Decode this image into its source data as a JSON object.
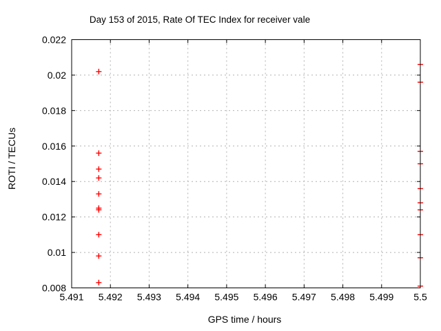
{
  "chart_data": {
    "type": "scatter",
    "title": "Day 153 of 2015, Rate Of TEC Index for receiver vale",
    "xlabel": "GPS time / hours",
    "ylabel": "ROTI / TECUs",
    "xlim": [
      5.491,
      5.5
    ],
    "ylim": [
      0.008,
      0.022
    ],
    "grid": true,
    "legend": "none",
    "marker": "plus",
    "colors": {
      "marker": "#ff0000",
      "grid": "#b0b0b0",
      "axis": "#000000",
      "background": "#ffffff"
    },
    "xticks": [
      {
        "value": 5.491,
        "label": "5.491"
      },
      {
        "value": 5.492,
        "label": "5.492"
      },
      {
        "value": 5.493,
        "label": "5.493"
      },
      {
        "value": 5.494,
        "label": "5.494"
      },
      {
        "value": 5.495,
        "label": "5.495"
      },
      {
        "value": 5.496,
        "label": "5.496"
      },
      {
        "value": 5.497,
        "label": "5.497"
      },
      {
        "value": 5.498,
        "label": "5.498"
      },
      {
        "value": 5.499,
        "label": "5.499"
      },
      {
        "value": 5.5,
        "label": "5.5"
      }
    ],
    "yticks": [
      {
        "value": 0.008,
        "label": "0.008"
      },
      {
        "value": 0.01,
        "label": "0.01"
      },
      {
        "value": 0.012,
        "label": "0.012"
      },
      {
        "value": 0.014,
        "label": "0.014"
      },
      {
        "value": 0.016,
        "label": "0.016"
      },
      {
        "value": 0.018,
        "label": "0.018"
      },
      {
        "value": 0.02,
        "label": "0.02"
      },
      {
        "value": 0.022,
        "label": "0.022"
      }
    ],
    "series": [
      {
        "name": "ROTI",
        "points": [
          [
            5.4917,
            0.0202
          ],
          [
            5.4917,
            0.0156
          ],
          [
            5.4917,
            0.0147
          ],
          [
            5.4917,
            0.0142
          ],
          [
            5.4917,
            0.0133
          ],
          [
            5.4917,
            0.0125
          ],
          [
            5.4917,
            0.0124
          ],
          [
            5.4917,
            0.011
          ],
          [
            5.4917,
            0.0098
          ],
          [
            5.4917,
            0.0083
          ],
          [
            5.5,
            0.0206
          ],
          [
            5.5,
            0.0196
          ],
          [
            5.5,
            0.0157
          ],
          [
            5.5,
            0.015
          ],
          [
            5.5,
            0.0136
          ],
          [
            5.5,
            0.0128
          ],
          [
            5.5,
            0.0124
          ],
          [
            5.5,
            0.011
          ],
          [
            5.5,
            0.0097
          ],
          [
            5.5,
            0.0081
          ]
        ]
      }
    ]
  }
}
